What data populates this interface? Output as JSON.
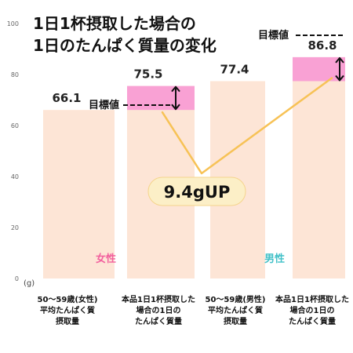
{
  "chart_data": {
    "type": "bar",
    "title": [
      "1日1杯摂取した場合の",
      "1日のたんぱく質量の変化"
    ],
    "xlabel": "",
    "ylabel": "(g)",
    "ylim": [
      0,
      100
    ],
    "yticks": [
      0,
      20,
      40,
      60,
      80,
      100
    ],
    "grid": false,
    "categories": [
      [
        "50～59歳(女性)",
        "平均たんぱく質",
        "摂取量"
      ],
      [
        "本品1日1杯摂取した",
        "場合の1日の",
        "たんぱく質量"
      ],
      [
        "50～59歳(男性)",
        "平均たんぱく質",
        "摂取量"
      ],
      [
        "本品1日1杯摂取した",
        "場合の1日の",
        "たんぱく質量"
      ]
    ],
    "values": [
      66.1,
      75.5,
      77.4,
      86.8
    ],
    "highlight_from": [
      null,
      66.1,
      null,
      77.4
    ],
    "groups": [
      {
        "label": "女性",
        "bars": [
          0,
          1
        ],
        "color": "#f2609e"
      },
      {
        "label": "男性",
        "bars": [
          2,
          3
        ],
        "color": "#43c1c8"
      }
    ],
    "annotations": [
      {
        "type": "target-marker",
        "text": "目標値",
        "bar": 1
      },
      {
        "type": "target-marker",
        "text": "目標値",
        "bar": 3
      },
      {
        "type": "increase-badge",
        "text": "9.4gUP"
      }
    ]
  },
  "colors": {
    "background": "#ffffff",
    "bar": "#fde5d6",
    "highlight": "#f9a1d4",
    "connector": "#f7c256",
    "badge": "#fcefc7",
    "badge_border": "#f5d48c",
    "arrow": "#111111"
  }
}
